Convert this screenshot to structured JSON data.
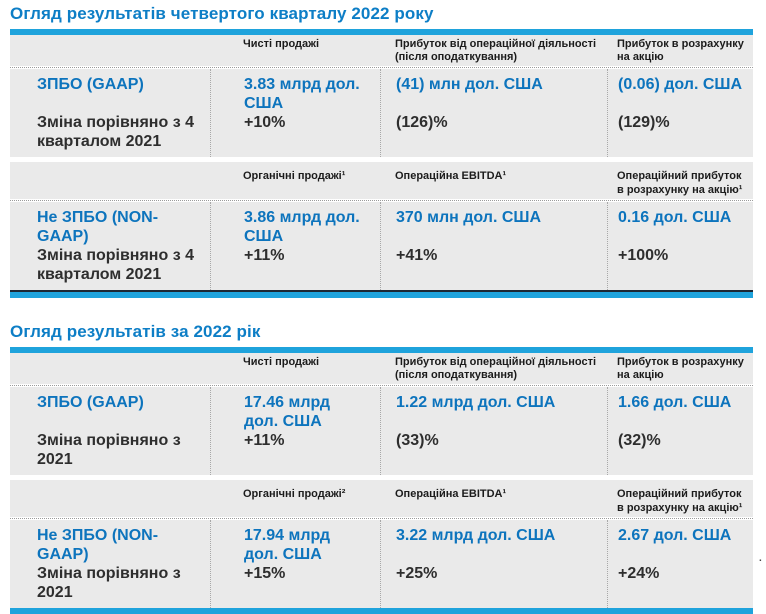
{
  "colors": {
    "title_blue": "#0d7ec6",
    "value_blue": "#0d74bd",
    "accent_bar": "#1fa3dc",
    "row_bg": "#eaeaea",
    "dark_edge": "#1c2733",
    "text_dark": "#1c1c1c",
    "change_text": "#2e2e2e",
    "dot_line": "#a8a8a8"
  },
  "sections": [
    {
      "title": "Огляд результатів четвертого кварталу 2022 року",
      "column_headers": [
        "Чисті продажі",
        "Прибуток від операційної діяльності (після оподаткування)",
        "Прибуток в розрахунку на акцію"
      ],
      "gaap": {
        "label": "ЗПБО (GAAP)",
        "change_label": "Зміна порівняно з 4 кварталом 2021",
        "values": [
          "3.83 млрд дол. США",
          "(41) млн дол. США",
          "(0.06) дол. США"
        ],
        "changes": [
          "+10%",
          "(126)%",
          "(129)%"
        ]
      },
      "subheaders": [
        "Органічні продажі¹",
        "Операційна EBITDA¹",
        "Операційний прибуток в розрахунку на акцію¹"
      ],
      "non_gaap": {
        "label": "Не ЗПБО (NON-GAAP)",
        "change_label": "Зміна порівняно з 4 кварталом 2021",
        "values": [
          "3.86 млрд дол. США",
          "370 млн дол. США",
          "0.16 дол. США"
        ],
        "changes": [
          "+11%",
          "+41%",
          "+100%"
        ]
      }
    },
    {
      "title": "Огляд результатів за 2022 рік",
      "column_headers": [
        "Чисті продажі",
        "Прибуток від операційної діяльності (після оподаткування)",
        "Прибуток в розрахунку на акцію"
      ],
      "gaap": {
        "label": "ЗПБО (GAAP)",
        "change_label": "Зміна порівняно з 2021",
        "values": [
          "17.46 млрд дол. США",
          "1.22 млрд дол. США",
          "1.66 дол. США"
        ],
        "changes": [
          "+11%",
          "(33)%",
          "(32)%"
        ]
      },
      "subheaders": [
        "Органічні продажі²",
        "Операційна EBITDA¹",
        "Операційний прибуток в розрахунку на акцію¹"
      ],
      "non_gaap": {
        "label": "Не ЗПБО (NON-GAAP)",
        "change_label": "Зміна порівняно з 2021",
        "values": [
          "17.94 млрд дол. США",
          "3.22 млрд дол. США",
          "2.67 дол. США"
        ],
        "changes": [
          "+15%",
          "+25%",
          "+24%"
        ]
      }
    }
  ],
  "artifact": {
    "dot": "."
  }
}
